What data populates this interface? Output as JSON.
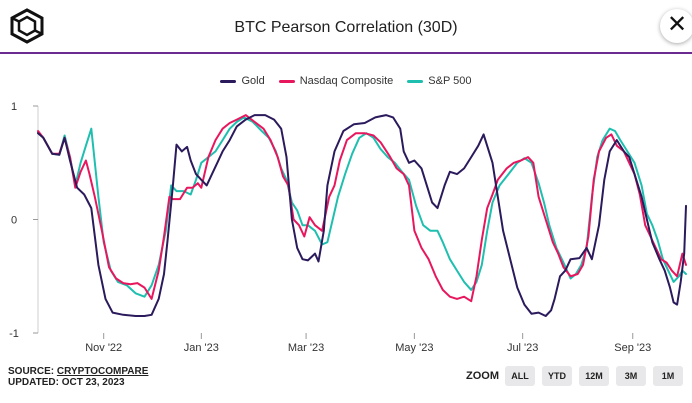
{
  "header": {
    "title": "BTC Pearson Correlation (30D)",
    "close_icon": "close-icon",
    "logo_icon": "cube-logo-icon"
  },
  "footer": {
    "source_prefix": "SOURCE: ",
    "source_name": "CRYPTOCOMPARE",
    "updated": "UPDATED: OCT 23, 2023",
    "zoom_label": "ZOOM",
    "zoom_buttons": [
      "ALL",
      "YTD",
      "12M",
      "3M",
      "1M"
    ]
  },
  "colors": {
    "accent": "#6b2a8f",
    "gold": "#2b1a5c",
    "nasdaq": "#e8175d",
    "sp500": "#1fbfb0"
  },
  "chart_data": {
    "type": "line",
    "title": "BTC Pearson Correlation (30D)",
    "xlabel": "",
    "ylabel": "",
    "ylim": [
      -1,
      1
    ],
    "yticks": [
      -1,
      0,
      1
    ],
    "xlim": [
      0,
      365
    ],
    "xticks": [
      {
        "t": 37,
        "label": "Nov '22"
      },
      {
        "t": 92,
        "label": "Jan '23"
      },
      {
        "t": 151,
        "label": "Mar '23"
      },
      {
        "t": 212,
        "label": "May '23"
      },
      {
        "t": 273,
        "label": "Jul '23"
      },
      {
        "t": 335,
        "label": "Sep '23"
      }
    ],
    "grid": false,
    "legend": "top-center",
    "series": [
      {
        "name": "Gold",
        "color": "#2b1a5c",
        "points": [
          [
            0,
            0.76
          ],
          [
            3,
            0.72
          ],
          [
            8,
            0.58
          ],
          [
            12,
            0.57
          ],
          [
            15,
            0.72
          ],
          [
            18,
            0.52
          ],
          [
            22,
            0.28
          ],
          [
            26,
            0.22
          ],
          [
            30,
            0.1
          ],
          [
            34,
            -0.4
          ],
          [
            38,
            -0.7
          ],
          [
            42,
            -0.82
          ],
          [
            48,
            -0.84
          ],
          [
            55,
            -0.85
          ],
          [
            60,
            -0.85
          ],
          [
            64,
            -0.84
          ],
          [
            68,
            -0.7
          ],
          [
            71,
            -0.48
          ],
          [
            73,
            -0.18
          ],
          [
            76,
            0.3
          ],
          [
            78,
            0.66
          ],
          [
            81,
            0.6
          ],
          [
            84,
            0.64
          ],
          [
            86,
            0.52
          ],
          [
            89,
            0.4
          ],
          [
            92,
            0.35
          ],
          [
            95,
            0.3
          ],
          [
            98,
            0.4
          ],
          [
            101,
            0.5
          ],
          [
            104,
            0.6
          ],
          [
            108,
            0.7
          ],
          [
            112,
            0.82
          ],
          [
            117,
            0.88
          ],
          [
            122,
            0.92
          ],
          [
            128,
            0.92
          ],
          [
            133,
            0.88
          ],
          [
            137,
            0.8
          ],
          [
            140,
            0.55
          ],
          [
            143,
            0.0
          ],
          [
            146,
            -0.25
          ],
          [
            149,
            -0.35
          ],
          [
            152,
            -0.36
          ],
          [
            156,
            -0.3
          ],
          [
            158,
            -0.37
          ],
          [
            161,
            -0.1
          ],
          [
            163,
            0.3
          ],
          [
            167,
            0.6
          ],
          [
            172,
            0.78
          ],
          [
            178,
            0.84
          ],
          [
            184,
            0.85
          ],
          [
            190,
            0.9
          ],
          [
            196,
            0.92
          ],
          [
            200,
            0.9
          ],
          [
            204,
            0.8
          ],
          [
            206,
            0.6
          ],
          [
            209,
            0.5
          ],
          [
            212,
            0.52
          ],
          [
            216,
            0.45
          ],
          [
            219,
            0.3
          ],
          [
            222,
            0.15
          ],
          [
            225,
            0.1
          ],
          [
            229,
            0.3
          ],
          [
            232,
            0.42
          ],
          [
            236,
            0.4
          ],
          [
            240,
            0.45
          ],
          [
            244,
            0.55
          ],
          [
            248,
            0.65
          ],
          [
            251,
            0.75
          ],
          [
            256,
            0.5
          ],
          [
            259,
            0.2
          ],
          [
            262,
            -0.1
          ],
          [
            266,
            -0.35
          ],
          [
            270,
            -0.6
          ],
          [
            274,
            -0.75
          ],
          [
            278,
            -0.83
          ],
          [
            282,
            -0.82
          ],
          [
            286,
            -0.85
          ],
          [
            289,
            -0.8
          ],
          [
            291,
            -0.7
          ],
          [
            294,
            -0.5
          ],
          [
            297,
            -0.45
          ],
          [
            300,
            -0.35
          ],
          [
            305,
            -0.34
          ],
          [
            309,
            -0.25
          ],
          [
            312,
            -0.35
          ],
          [
            316,
            -0.05
          ],
          [
            319,
            0.35
          ],
          [
            322,
            0.6
          ],
          [
            326,
            0.7
          ],
          [
            330,
            0.6
          ],
          [
            333,
            0.55
          ],
          [
            336,
            0.4
          ],
          [
            340,
            0.2
          ],
          [
            343,
            0.0
          ],
          [
            346,
            -0.2
          ],
          [
            350,
            -0.35
          ],
          [
            353,
            -0.45
          ],
          [
            356,
            -0.6
          ],
          [
            358,
            -0.73
          ],
          [
            360,
            -0.75
          ],
          [
            362,
            -0.55
          ],
          [
            364,
            -0.3
          ],
          [
            365,
            0.12
          ]
        ]
      },
      {
        "name": "Nasdaq Composite",
        "color": "#e8175d",
        "points": [
          [
            0,
            0.78
          ],
          [
            3,
            0.72
          ],
          [
            8,
            0.58
          ],
          [
            12,
            0.58
          ],
          [
            15,
            0.72
          ],
          [
            18,
            0.55
          ],
          [
            21,
            0.28
          ],
          [
            24,
            0.42
          ],
          [
            27,
            0.52
          ],
          [
            29,
            0.4
          ],
          [
            32,
            0.2
          ],
          [
            36,
            -0.1
          ],
          [
            40,
            -0.42
          ],
          [
            44,
            -0.52
          ],
          [
            48,
            -0.56
          ],
          [
            52,
            -0.57
          ],
          [
            56,
            -0.56
          ],
          [
            60,
            -0.6
          ],
          [
            64,
            -0.7
          ],
          [
            68,
            -0.45
          ],
          [
            71,
            -0.15
          ],
          [
            74,
            0.2
          ],
          [
            76,
            0.18
          ],
          [
            80,
            0.18
          ],
          [
            84,
            0.28
          ],
          [
            87,
            0.28
          ],
          [
            90,
            0.32
          ],
          [
            92,
            0.28
          ],
          [
            96,
            0.55
          ],
          [
            100,
            0.7
          ],
          [
            104,
            0.8
          ],
          [
            108,
            0.85
          ],
          [
            112,
            0.88
          ],
          [
            117,
            0.92
          ],
          [
            122,
            0.86
          ],
          [
            127,
            0.8
          ],
          [
            131,
            0.7
          ],
          [
            135,
            0.55
          ],
          [
            138,
            0.38
          ],
          [
            141,
            0.3
          ],
          [
            144,
            0.0
          ],
          [
            147,
            -0.05
          ],
          [
            150,
            -0.15
          ],
          [
            153,
            0.02
          ],
          [
            156,
            -0.05
          ],
          [
            160,
            -0.1
          ],
          [
            164,
            0.2
          ],
          [
            167,
            0.3
          ],
          [
            170,
            0.52
          ],
          [
            174,
            0.7
          ],
          [
            179,
            0.76
          ],
          [
            184,
            0.76
          ],
          [
            189,
            0.74
          ],
          [
            193,
            0.68
          ],
          [
            198,
            0.56
          ],
          [
            202,
            0.45
          ],
          [
            206,
            0.4
          ],
          [
            209,
            0.3
          ],
          [
            212,
            -0.1
          ],
          [
            216,
            -0.25
          ],
          [
            220,
            -0.35
          ],
          [
            224,
            -0.5
          ],
          [
            228,
            -0.62
          ],
          [
            232,
            -0.68
          ],
          [
            236,
            -0.7
          ],
          [
            240,
            -0.68
          ],
          [
            244,
            -0.72
          ],
          [
            247,
            -0.5
          ],
          [
            250,
            -0.18
          ],
          [
            253,
            0.1
          ],
          [
            256,
            0.22
          ],
          [
            259,
            0.35
          ],
          [
            264,
            0.45
          ],
          [
            268,
            0.5
          ],
          [
            272,
            0.52
          ],
          [
            276,
            0.55
          ],
          [
            279,
            0.5
          ],
          [
            282,
            0.2
          ],
          [
            286,
            0.0
          ],
          [
            290,
            -0.2
          ],
          [
            293,
            -0.3
          ],
          [
            296,
            -0.42
          ],
          [
            300,
            -0.5
          ],
          [
            304,
            -0.48
          ],
          [
            307,
            -0.4
          ],
          [
            310,
            -0.15
          ],
          [
            313,
            0.35
          ],
          [
            316,
            0.6
          ],
          [
            320,
            0.72
          ],
          [
            323,
            0.75
          ],
          [
            326,
            0.65
          ],
          [
            330,
            0.6
          ],
          [
            333,
            0.5
          ],
          [
            336,
            0.4
          ],
          [
            339,
            0.22
          ],
          [
            342,
            -0.05
          ],
          [
            345,
            -0.15
          ],
          [
            348,
            -0.25
          ],
          [
            351,
            -0.35
          ],
          [
            354,
            -0.38
          ],
          [
            357,
            -0.45
          ],
          [
            360,
            -0.5
          ],
          [
            363,
            -0.3
          ],
          [
            365,
            -0.4
          ]
        ]
      },
      {
        "name": "S&P 500",
        "color": "#1fbfb0",
        "points": [
          [
            0,
            0.77
          ],
          [
            3,
            0.72
          ],
          [
            8,
            0.58
          ],
          [
            12,
            0.57
          ],
          [
            15,
            0.74
          ],
          [
            18,
            0.55
          ],
          [
            21,
            0.3
          ],
          [
            24,
            0.5
          ],
          [
            27,
            0.65
          ],
          [
            30,
            0.8
          ],
          [
            34,
            0.2
          ],
          [
            37,
            -0.2
          ],
          [
            41,
            -0.45
          ],
          [
            45,
            -0.55
          ],
          [
            50,
            -0.58
          ],
          [
            55,
            -0.65
          ],
          [
            60,
            -0.68
          ],
          [
            64,
            -0.58
          ],
          [
            68,
            -0.4
          ],
          [
            72,
            -0.1
          ],
          [
            75,
            0.3
          ],
          [
            78,
            0.25
          ],
          [
            82,
            0.25
          ],
          [
            86,
            0.22
          ],
          [
            89,
            0.35
          ],
          [
            92,
            0.5
          ],
          [
            96,
            0.55
          ],
          [
            100,
            0.6
          ],
          [
            104,
            0.7
          ],
          [
            108,
            0.8
          ],
          [
            112,
            0.86
          ],
          [
            116,
            0.9
          ],
          [
            121,
            0.86
          ],
          [
            126,
            0.78
          ],
          [
            130,
            0.72
          ],
          [
            134,
            0.6
          ],
          [
            137,
            0.45
          ],
          [
            140,
            0.35
          ],
          [
            143,
            0.15
          ],
          [
            146,
            0.08
          ],
          [
            149,
            -0.05
          ],
          [
            152,
            -0.05
          ],
          [
            156,
            -0.1
          ],
          [
            160,
            -0.22
          ],
          [
            163,
            -0.2
          ],
          [
            166,
            0.0
          ],
          [
            169,
            0.2
          ],
          [
            173,
            0.4
          ],
          [
            177,
            0.58
          ],
          [
            181,
            0.72
          ],
          [
            185,
            0.76
          ],
          [
            189,
            0.72
          ],
          [
            193,
            0.62
          ],
          [
            197,
            0.55
          ],
          [
            201,
            0.5
          ],
          [
            205,
            0.42
          ],
          [
            209,
            0.35
          ],
          [
            213,
            0.12
          ],
          [
            217,
            -0.05
          ],
          [
            221,
            -0.1
          ],
          [
            225,
            -0.1
          ],
          [
            228,
            -0.2
          ],
          [
            232,
            -0.35
          ],
          [
            236,
            -0.45
          ],
          [
            240,
            -0.55
          ],
          [
            244,
            -0.62
          ],
          [
            247,
            -0.55
          ],
          [
            250,
            -0.4
          ],
          [
            253,
            -0.1
          ],
          [
            256,
            0.15
          ],
          [
            260,
            0.3
          ],
          [
            265,
            0.4
          ],
          [
            270,
            0.5
          ],
          [
            274,
            0.54
          ],
          [
            278,
            0.5
          ],
          [
            282,
            0.32
          ],
          [
            285,
            0.15
          ],
          [
            288,
            -0.05
          ],
          [
            292,
            -0.25
          ],
          [
            296,
            -0.38
          ],
          [
            300,
            -0.52
          ],
          [
            303,
            -0.48
          ],
          [
            306,
            -0.4
          ],
          [
            309,
            -0.25
          ],
          [
            312,
            0.2
          ],
          [
            315,
            0.55
          ],
          [
            318,
            0.7
          ],
          [
            322,
            0.8
          ],
          [
            325,
            0.78
          ],
          [
            328,
            0.7
          ],
          [
            332,
            0.6
          ],
          [
            336,
            0.5
          ],
          [
            340,
            0.3
          ],
          [
            343,
            0.05
          ],
          [
            346,
            -0.05
          ],
          [
            349,
            -0.18
          ],
          [
            352,
            -0.35
          ],
          [
            355,
            -0.45
          ],
          [
            358,
            -0.55
          ],
          [
            361,
            -0.5
          ],
          [
            363,
            -0.45
          ],
          [
            365,
            -0.48
          ]
        ]
      }
    ]
  }
}
